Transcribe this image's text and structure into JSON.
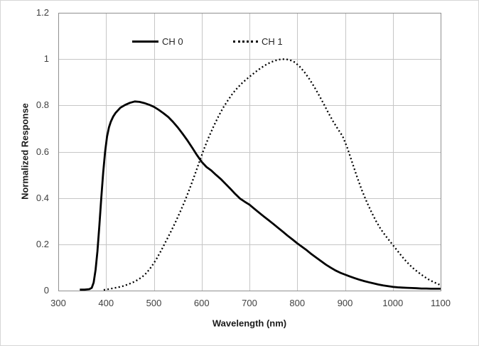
{
  "chart_data": {
    "type": "line",
    "title": "",
    "xlabel": "Wavelength (nm)",
    "ylabel": "Normalized Response",
    "xlim": [
      300,
      1100
    ],
    "ylim": [
      0,
      1.2
    ],
    "x_ticks": [
      300,
      400,
      500,
      600,
      700,
      800,
      900,
      1000,
      1100
    ],
    "y_ticks": [
      0,
      0.2,
      0.4,
      0.6,
      0.8,
      1,
      1.2
    ],
    "y_tick_labels": [
      "0",
      "0.2",
      "0.4",
      "0.6",
      "0.8",
      "1",
      "1.2"
    ],
    "grid": true,
    "legend_position": "inside-top",
    "colors": {
      "curve": "#000000",
      "gridline": "#c6c6c6",
      "border": "#8f8f8f",
      "tick_text": "#3f3f3f",
      "title_text": "#1a1a1a",
      "background": "#ffffff"
    },
    "series": [
      {
        "name": "CH 0",
        "line_style": "solid",
        "color": "#000000",
        "points": [
          [
            345,
            0.004
          ],
          [
            355,
            0.004
          ],
          [
            365,
            0.006
          ],
          [
            370,
            0.012
          ],
          [
            374,
            0.035
          ],
          [
            378,
            0.09
          ],
          [
            382,
            0.17
          ],
          [
            386,
            0.28
          ],
          [
            390,
            0.4
          ],
          [
            394,
            0.51
          ],
          [
            398,
            0.6
          ],
          [
            402,
            0.665
          ],
          [
            406,
            0.705
          ],
          [
            410,
            0.73
          ],
          [
            415,
            0.752
          ],
          [
            420,
            0.768
          ],
          [
            430,
            0.79
          ],
          [
            440,
            0.802
          ],
          [
            450,
            0.811
          ],
          [
            460,
            0.817
          ],
          [
            470,
            0.815
          ],
          [
            480,
            0.81
          ],
          [
            490,
            0.803
          ],
          [
            500,
            0.794
          ],
          [
            510,
            0.781
          ],
          [
            520,
            0.766
          ],
          [
            530,
            0.75
          ],
          [
            540,
            0.729
          ],
          [
            550,
            0.705
          ],
          [
            560,
            0.678
          ],
          [
            570,
            0.649
          ],
          [
            580,
            0.618
          ],
          [
            590,
            0.586
          ],
          [
            600,
            0.556
          ],
          [
            610,
            0.534
          ],
          [
            620,
            0.519
          ],
          [
            630,
            0.5
          ],
          [
            640,
            0.482
          ],
          [
            650,
            0.461
          ],
          [
            660,
            0.44
          ],
          [
            670,
            0.418
          ],
          [
            680,
            0.398
          ],
          [
            690,
            0.384
          ],
          [
            700,
            0.371
          ],
          [
            710,
            0.354
          ],
          [
            720,
            0.337
          ],
          [
            730,
            0.32
          ],
          [
            740,
            0.304
          ],
          [
            750,
            0.288
          ],
          [
            760,
            0.271
          ],
          [
            770,
            0.254
          ],
          [
            780,
            0.237
          ],
          [
            790,
            0.221
          ],
          [
            800,
            0.204
          ],
          [
            810,
            0.189
          ],
          [
            820,
            0.174
          ],
          [
            830,
            0.157
          ],
          [
            840,
            0.142
          ],
          [
            850,
            0.127
          ],
          [
            860,
            0.112
          ],
          [
            870,
            0.099
          ],
          [
            880,
            0.087
          ],
          [
            890,
            0.077
          ],
          [
            900,
            0.069
          ],
          [
            910,
            0.061
          ],
          [
            920,
            0.054
          ],
          [
            930,
            0.047
          ],
          [
            940,
            0.041
          ],
          [
            950,
            0.036
          ],
          [
            960,
            0.031
          ],
          [
            970,
            0.026
          ],
          [
            980,
            0.022
          ],
          [
            990,
            0.019
          ],
          [
            1000,
            0.016
          ],
          [
            1010,
            0.014
          ],
          [
            1020,
            0.013
          ],
          [
            1030,
            0.012
          ],
          [
            1040,
            0.011
          ],
          [
            1050,
            0.01
          ],
          [
            1060,
            0.009
          ],
          [
            1070,
            0.009
          ],
          [
            1080,
            0.008
          ],
          [
            1090,
            0.008
          ],
          [
            1100,
            0.008
          ]
        ]
      },
      {
        "name": "CH 1",
        "line_style": "dotted",
        "color": "#000000",
        "points": [
          [
            395,
            0.003
          ],
          [
            405,
            0.006
          ],
          [
            415,
            0.01
          ],
          [
            425,
            0.014
          ],
          [
            435,
            0.019
          ],
          [
            445,
            0.026
          ],
          [
            455,
            0.034
          ],
          [
            465,
            0.045
          ],
          [
            475,
            0.058
          ],
          [
            485,
            0.077
          ],
          [
            495,
            0.103
          ],
          [
            505,
            0.135
          ],
          [
            515,
            0.172
          ],
          [
            525,
            0.212
          ],
          [
            535,
            0.252
          ],
          [
            545,
            0.295
          ],
          [
            555,
            0.34
          ],
          [
            565,
            0.388
          ],
          [
            575,
            0.44
          ],
          [
            585,
            0.497
          ],
          [
            595,
            0.555
          ],
          [
            605,
            0.612
          ],
          [
            615,
            0.663
          ],
          [
            625,
            0.71
          ],
          [
            635,
            0.752
          ],
          [
            645,
            0.79
          ],
          [
            655,
            0.822
          ],
          [
            665,
            0.852
          ],
          [
            675,
            0.876
          ],
          [
            685,
            0.897
          ],
          [
            695,
            0.915
          ],
          [
            705,
            0.932
          ],
          [
            715,
            0.948
          ],
          [
            725,
            0.963
          ],
          [
            735,
            0.976
          ],
          [
            745,
            0.987
          ],
          [
            755,
            0.994
          ],
          [
            765,
            0.999
          ],
          [
            775,
            1.0
          ],
          [
            785,
            0.996
          ],
          [
            795,
            0.986
          ],
          [
            805,
            0.968
          ],
          [
            815,
            0.944
          ],
          [
            825,
            0.915
          ],
          [
            835,
            0.882
          ],
          [
            845,
            0.846
          ],
          [
            855,
            0.808
          ],
          [
            865,
            0.768
          ],
          [
            875,
            0.731
          ],
          [
            885,
            0.698
          ],
          [
            895,
            0.667
          ],
          [
            905,
            0.615
          ],
          [
            915,
            0.553
          ],
          [
            925,
            0.492
          ],
          [
            935,
            0.435
          ],
          [
            945,
            0.385
          ],
          [
            955,
            0.34
          ],
          [
            965,
            0.3
          ],
          [
            975,
            0.265
          ],
          [
            985,
            0.236
          ],
          [
            995,
            0.21
          ],
          [
            1005,
            0.184
          ],
          [
            1015,
            0.158
          ],
          [
            1025,
            0.133
          ],
          [
            1035,
            0.111
          ],
          [
            1045,
            0.092
          ],
          [
            1055,
            0.076
          ],
          [
            1065,
            0.061
          ],
          [
            1075,
            0.048
          ],
          [
            1085,
            0.037
          ],
          [
            1095,
            0.028
          ],
          [
            1100,
            0.024
          ]
        ]
      }
    ]
  }
}
